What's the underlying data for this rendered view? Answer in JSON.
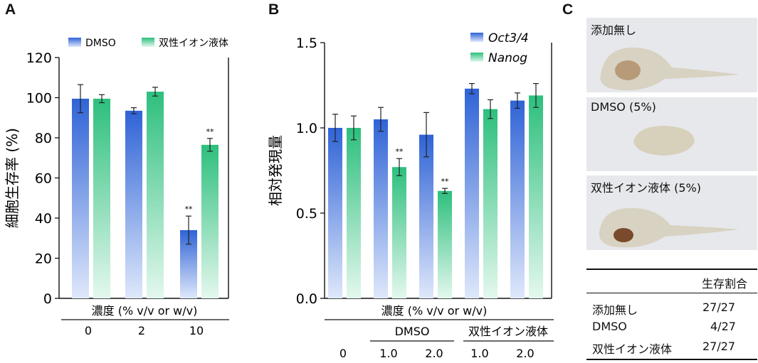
{
  "colors": {
    "blue_top": "#2f63d6",
    "blue_bottom": "#dfe8fb",
    "green_top": "#2dbf7d",
    "green_bottom": "#e4f8ee",
    "photo_bg": "#e7e8ec"
  },
  "panels": {
    "a": "A",
    "b": "B",
    "c": "C"
  },
  "chart_data": [
    {
      "type": "bar",
      "ylabel": "細胞生存率 (%)",
      "xlabel": "濃度 (% v/v or w/v)",
      "categories": [
        "0",
        "2",
        "10"
      ],
      "ylim": [
        0,
        120
      ],
      "yticks": [
        0,
        20,
        40,
        60,
        80,
        100,
        120
      ],
      "legend_position": "top",
      "series": [
        {
          "name": "DMSO",
          "color": "blue",
          "values": [
            99.5,
            93.5,
            34
          ],
          "errors": [
            7,
            1.5,
            7
          ],
          "significance": [
            "",
            "",
            "**"
          ]
        },
        {
          "name": "双性イオン液体",
          "color": "green",
          "values": [
            99.5,
            103,
            76.5
          ],
          "errors": [
            2,
            2.2,
            3.2
          ],
          "significance": [
            "",
            "",
            "**"
          ]
        }
      ]
    },
    {
      "type": "bar",
      "ylabel": "相対発現量",
      "xlabel": "濃度 (% v/v or w/v)",
      "groups": [
        {
          "label": "",
          "categories": [
            "0"
          ]
        },
        {
          "label": "DMSO",
          "categories": [
            "1.0",
            "2.0"
          ]
        },
        {
          "label": "双性イオン液体",
          "categories": [
            "1.0",
            "2.0"
          ]
        }
      ],
      "categories": [
        "0",
        "1.0",
        "2.0",
        "1.0",
        "2.0"
      ],
      "ylim": [
        0,
        1.5
      ],
      "yticks": [
        "0.0",
        "0.5",
        "1.0",
        "1.5"
      ],
      "legend_position": "top-right",
      "series": [
        {
          "name": "Oct3/4",
          "color": "blue",
          "values": [
            1.0,
            1.05,
            0.96,
            1.23,
            1.16
          ],
          "errors": [
            0.08,
            0.07,
            0.13,
            0.03,
            0.045
          ],
          "significance": [
            "",
            "",
            "",
            "",
            ""
          ]
        },
        {
          "name": "Nanog",
          "color": "green",
          "values": [
            1.0,
            0.77,
            0.63,
            1.11,
            1.19
          ],
          "errors": [
            0.07,
            0.05,
            0.015,
            0.055,
            0.07
          ],
          "significance": [
            "",
            "**",
            "**",
            "",
            ""
          ]
        }
      ]
    }
  ],
  "photos": [
    {
      "label": "添加無し"
    },
    {
      "label": "DMSO (5%)"
    },
    {
      "label": "双性イオン液体 (5%)"
    }
  ],
  "table": {
    "header": "生存割合",
    "rows": [
      {
        "name": "添加無し",
        "value": "27/27"
      },
      {
        "name": "DMSO",
        "value": "4/27"
      },
      {
        "name": "双性イオン液体",
        "value": "27/27"
      }
    ]
  }
}
